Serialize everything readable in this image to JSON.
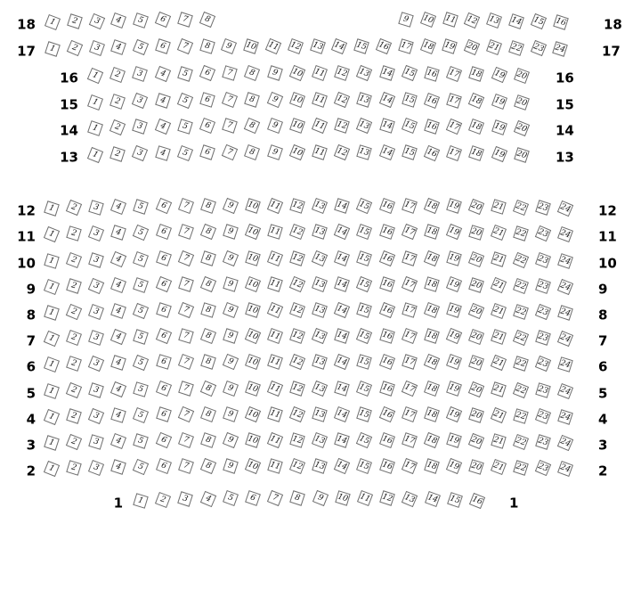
{
  "seat_map": {
    "background_color": "#ffffff",
    "seat_border_color": "#6e6e6e",
    "seat_number_color": "#161616",
    "row_label_color": "#000000",
    "rows": [
      {
        "label": "18",
        "blocks": [
          {
            "from": 1,
            "to": 8
          },
          {
            "from": 9,
            "to": 16
          }
        ]
      },
      {
        "label": "17",
        "blocks": [
          {
            "from": 1,
            "to": 24
          }
        ]
      },
      {
        "label": "16",
        "blocks": [
          {
            "from": 1,
            "to": 20
          }
        ]
      },
      {
        "label": "15",
        "blocks": [
          {
            "from": 1,
            "to": 20
          }
        ]
      },
      {
        "label": "14",
        "blocks": [
          {
            "from": 1,
            "to": 20
          }
        ]
      },
      {
        "label": "13",
        "blocks": [
          {
            "from": 1,
            "to": 20
          }
        ]
      },
      {
        "label": "12",
        "blocks": [
          {
            "from": 1,
            "to": 24
          }
        ]
      },
      {
        "label": "11",
        "blocks": [
          {
            "from": 1,
            "to": 24
          }
        ]
      },
      {
        "label": "10",
        "blocks": [
          {
            "from": 1,
            "to": 24
          }
        ]
      },
      {
        "label": "9",
        "blocks": [
          {
            "from": 1,
            "to": 24
          }
        ]
      },
      {
        "label": "8",
        "blocks": [
          {
            "from": 1,
            "to": 24
          }
        ]
      },
      {
        "label": "7",
        "blocks": [
          {
            "from": 1,
            "to": 24
          }
        ]
      },
      {
        "label": "6",
        "blocks": [
          {
            "from": 1,
            "to": 24
          }
        ]
      },
      {
        "label": "5",
        "blocks": [
          {
            "from": 1,
            "to": 24
          }
        ]
      },
      {
        "label": "4",
        "blocks": [
          {
            "from": 1,
            "to": 24
          }
        ]
      },
      {
        "label": "3",
        "blocks": [
          {
            "from": 1,
            "to": 24
          }
        ]
      },
      {
        "label": "2",
        "blocks": [
          {
            "from": 1,
            "to": 24
          }
        ]
      },
      {
        "label": "1",
        "blocks": [
          {
            "from": 1,
            "to": 16
          }
        ]
      }
    ]
  }
}
